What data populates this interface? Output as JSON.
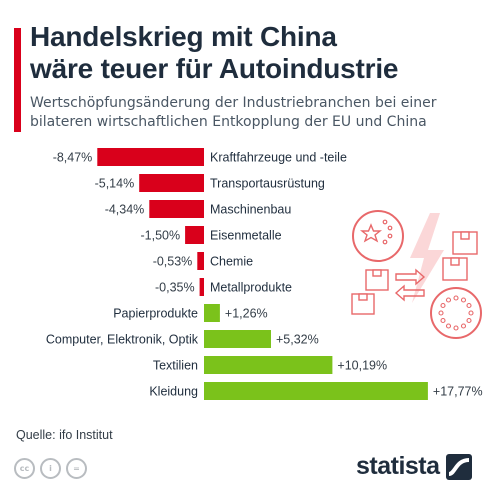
{
  "header": {
    "title_line1": "Handelskrieg mit China",
    "title_line2": "wäre teuer für Autoindustrie",
    "subtitle_line1": "Wertschöpfungsänderung der Industriebranchen bei einer",
    "subtitle_line2": "bilateren wirtschaftlichen Entkopplung der EU und China"
  },
  "chart_data": {
    "type": "bar",
    "orientation": "horizontal",
    "unit": "%",
    "categories": [
      "Kraftfahrzeuge und -teile",
      "Transportausrüstung",
      "Maschinenbau",
      "Eisenmetalle",
      "Chemie",
      "Metallprodukte",
      "Papierprodukte",
      "Computer, Elektronik, Optik",
      "Textilien",
      "Kleidung"
    ],
    "values": [
      -8.47,
      -5.14,
      -4.34,
      -1.5,
      -0.53,
      -0.35,
      1.26,
      5.32,
      10.19,
      17.77
    ],
    "labels": [
      "-8,47%",
      "-5,14%",
      "-4,34%",
      "-1,50%",
      "-0,53%",
      "-0,35%",
      "+1,26%",
      "+5,32%",
      "+10,19%",
      "+17,77%"
    ],
    "colors": {
      "negative": "#d9001b",
      "positive": "#7bc21b"
    }
  },
  "footer": {
    "source": "Quelle: ifo Institut",
    "brand": "statista"
  },
  "colors": {
    "accent": "#d9001b",
    "title": "#1f2d3d",
    "illustration": "#e8686a"
  },
  "icons": [
    "cc-icon",
    "by-icon",
    "nd-icon",
    "statista-logo-icon",
    "china-flag-icon",
    "eu-flag-icon",
    "lightning-icon",
    "box-icon",
    "exchange-arrows-icon"
  ]
}
